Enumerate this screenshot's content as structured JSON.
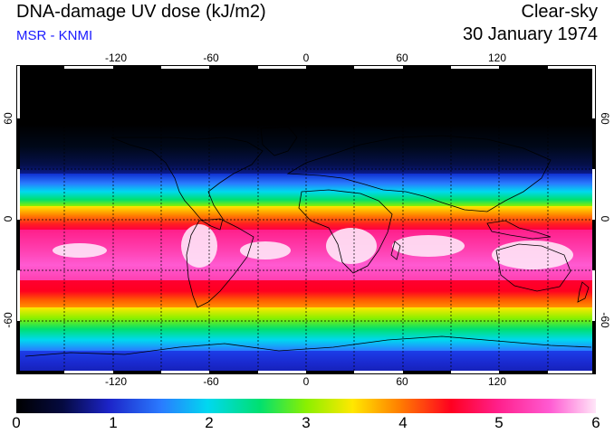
{
  "header": {
    "title": "DNA-damage UV dose (kJ/m2)",
    "subtitle": "MSR - KNMI",
    "sky": "Clear-sky",
    "date": "30 January 1974"
  },
  "map": {
    "longitude_ticks": [
      "-120",
      "-60",
      "0",
      "60",
      "120"
    ],
    "latitude_ticks": [
      "60",
      "0",
      "-60"
    ]
  },
  "colorbar": {
    "ticks": [
      "0",
      "1",
      "2",
      "3",
      "4",
      "5",
      "6"
    ],
    "unit": "kJ/m2"
  }
}
